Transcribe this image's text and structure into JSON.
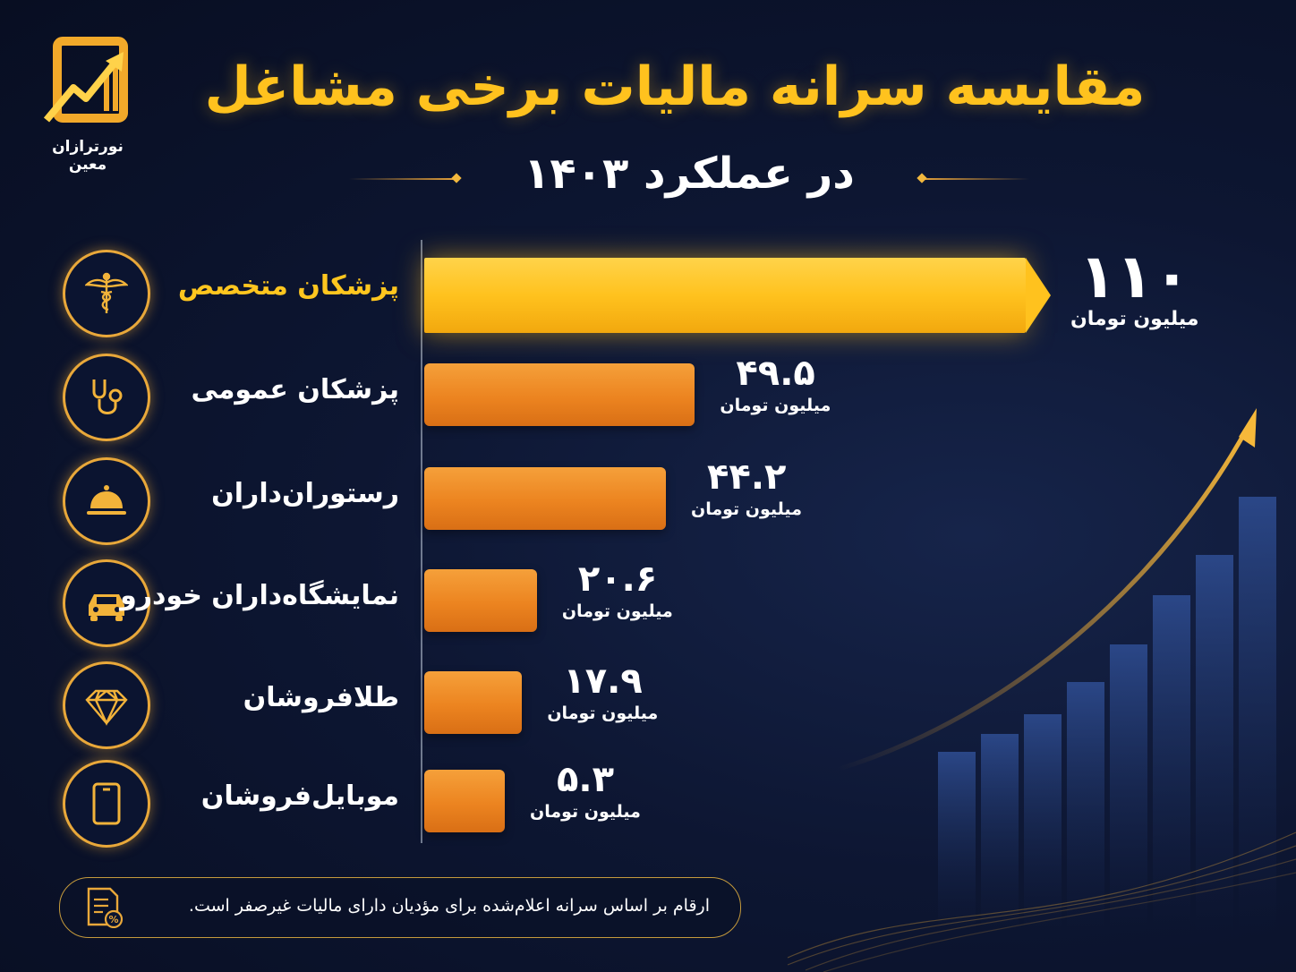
{
  "brand": {
    "name": "نورترازان معین",
    "colors": {
      "gold": "#ffc21e",
      "orange": "#ec8420",
      "background": "#0d1632"
    }
  },
  "header": {
    "title": "مقایسه سرانه مالیات برخی مشاغل",
    "subtitle": "در عملکرد ۱۴۰۳"
  },
  "chart_data": {
    "type": "bar",
    "orientation": "horizontal",
    "unit": "میلیون تومان",
    "categories": [
      "پزشکان متخصص",
      "پزشکان عمومی",
      "رستوران‌داران",
      "نمایشگاه‌داران خودرو",
      "طلافروشان",
      "موبایل‌فروشان"
    ],
    "values": [
      110,
      49.5,
      44.2,
      20.6,
      17.9,
      5.3
    ],
    "value_labels": [
      "۱۱۰",
      "۴۹.۵",
      "۴۴.۲",
      "۲۰.۶",
      "۱۷.۹",
      "۵.۳"
    ],
    "icons": [
      "caduceus-icon",
      "stethoscope-icon",
      "cloche-icon",
      "car-icon",
      "diamond-icon",
      "mobile-phone-icon"
    ],
    "highlight_index": 0,
    "xlim": [
      0,
      110
    ]
  },
  "footnote": {
    "text": "ارقام بر اساس سرانه اعلام‌شده برای مؤدیان دارای مالیات غیرصفر است.",
    "icon": "document-percent-icon"
  }
}
